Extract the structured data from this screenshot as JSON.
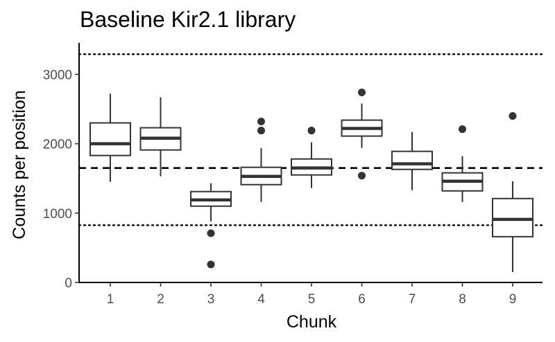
{
  "chart_data": {
    "type": "boxplot",
    "title": "Baseline Kir2.1 library",
    "xlabel": "Chunk",
    "ylabel": "Counts per position",
    "categories": [
      "1",
      "2",
      "3",
      "4",
      "5",
      "6",
      "7",
      "8",
      "9"
    ],
    "yticks": [
      0,
      1000,
      2000,
      3000
    ],
    "ylim": [
      -30,
      3440
    ],
    "grid": false,
    "reference_lines": [
      {
        "style": "dotted",
        "y": 3290
      },
      {
        "style": "dashed",
        "y": 1650
      },
      {
        "style": "dotted",
        "y": 825
      }
    ],
    "boxes": [
      {
        "category": "1",
        "whisker_low": 1450,
        "q1": 1830,
        "median": 2000,
        "q3": 2300,
        "whisker_high": 2720,
        "outliers": []
      },
      {
        "category": "2",
        "whisker_low": 1530,
        "q1": 1910,
        "median": 2080,
        "q3": 2230,
        "whisker_high": 2670,
        "outliers": []
      },
      {
        "category": "3",
        "whisker_low": 880,
        "q1": 1100,
        "median": 1190,
        "q3": 1310,
        "whisker_high": 1430,
        "outliers": [
          710,
          260
        ]
      },
      {
        "category": "4",
        "whisker_low": 1160,
        "q1": 1410,
        "median": 1530,
        "q3": 1660,
        "whisker_high": 1940,
        "outliers": [
          2320,
          2190
        ]
      },
      {
        "category": "5",
        "whisker_low": 1360,
        "q1": 1550,
        "median": 1650,
        "q3": 1780,
        "whisker_high": 2020,
        "outliers": [
          2190
        ]
      },
      {
        "category": "6",
        "whisker_low": 1940,
        "q1": 2110,
        "median": 2220,
        "q3": 2340,
        "whisker_high": 2580,
        "outliers": [
          2740,
          1540
        ]
      },
      {
        "category": "7",
        "whisker_low": 1330,
        "q1": 1630,
        "median": 1710,
        "q3": 1890,
        "whisker_high": 2170,
        "outliers": []
      },
      {
        "category": "8",
        "whisker_low": 1160,
        "q1": 1320,
        "median": 1460,
        "q3": 1580,
        "whisker_high": 1820,
        "outliers": [
          2210
        ]
      },
      {
        "category": "9",
        "whisker_low": 150,
        "q1": 660,
        "median": 910,
        "q3": 1210,
        "whisker_high": 1460,
        "outliers": [
          2400
        ]
      }
    ]
  }
}
